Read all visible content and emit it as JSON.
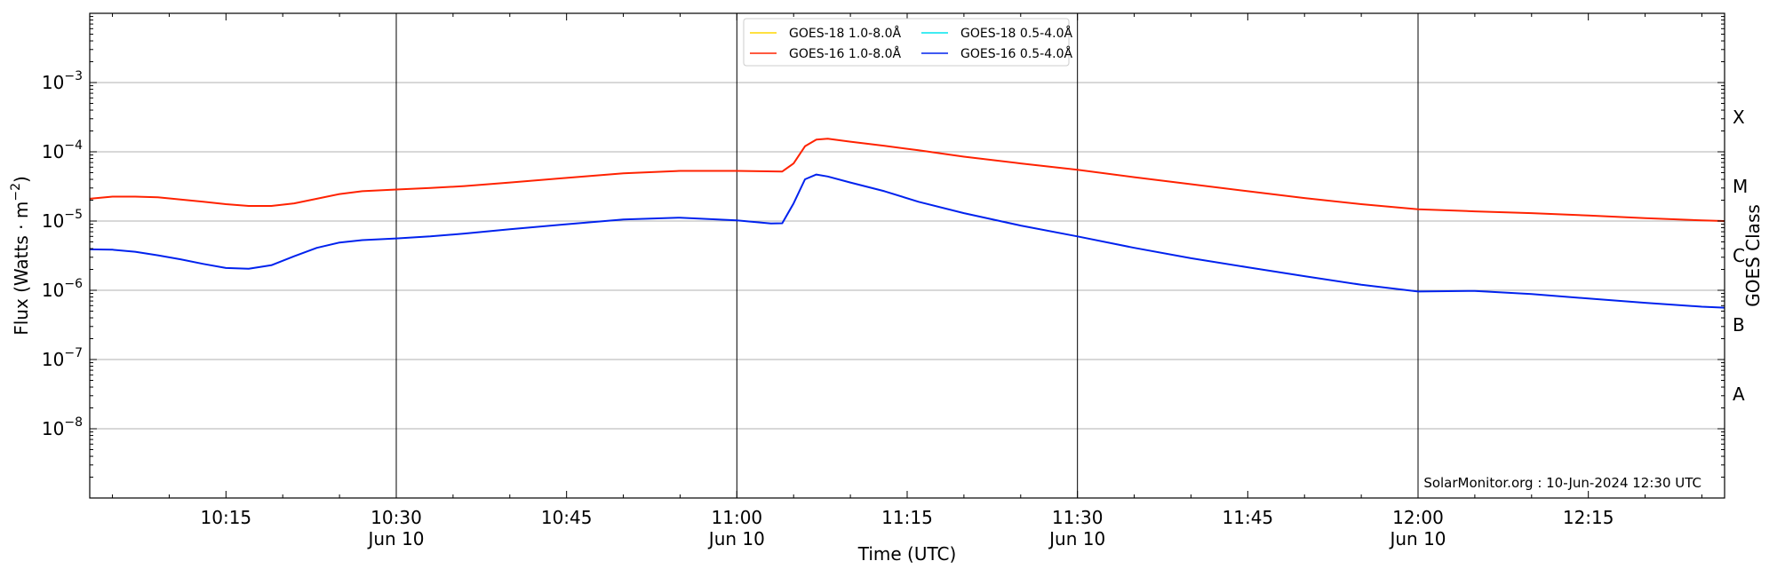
{
  "chart_data": {
    "type": "line",
    "ylabel": "Flux (Watts · m",
    "ylabel_sup": "−2",
    "ylabel_close": ")",
    "xlabel": "Time (UTC)",
    "right_ylabel": "GOES Class",
    "y_scale": "log",
    "ylim": [
      1e-09,
      0.01
    ],
    "xlim": [
      "2024-06-10T10:03",
      "2024-06-10T12:27"
    ],
    "grid": "horizontal",
    "legend_position": "top-center",
    "y_ticks": [
      {
        "value": 1e-08,
        "base": "10",
        "exp": "−8"
      },
      {
        "value": 1e-07,
        "base": "10",
        "exp": "−7"
      },
      {
        "value": 1e-06,
        "base": "10",
        "exp": "−6"
      },
      {
        "value": 1e-05,
        "base": "10",
        "exp": "−5"
      },
      {
        "value": 0.0001,
        "base": "10",
        "exp": "−4"
      },
      {
        "value": 0.001,
        "base": "10",
        "exp": "−3"
      }
    ],
    "x_ticks": [
      {
        "time": "2024-06-10T10:15",
        "label": "10:15",
        "sublabel": ""
      },
      {
        "time": "2024-06-10T10:30",
        "label": "10:30",
        "sublabel": "Jun 10"
      },
      {
        "time": "2024-06-10T10:45",
        "label": "10:45",
        "sublabel": ""
      },
      {
        "time": "2024-06-10T11:00",
        "label": "11:00",
        "sublabel": "Jun 10"
      },
      {
        "time": "2024-06-10T11:15",
        "label": "11:15",
        "sublabel": ""
      },
      {
        "time": "2024-06-10T11:30",
        "label": "11:30",
        "sublabel": "Jun 10"
      },
      {
        "time": "2024-06-10T11:45",
        "label": "11:45",
        "sublabel": ""
      },
      {
        "time": "2024-06-10T12:00",
        "label": "12:00",
        "sublabel": "Jun 10"
      },
      {
        "time": "2024-06-10T12:15",
        "label": "12:15",
        "sublabel": ""
      }
    ],
    "vertical_lines": [
      "2024-06-10T10:30",
      "2024-06-10T11:00",
      "2024-06-10T11:30",
      "2024-06-10T12:00"
    ],
    "goes_classes": [
      {
        "label": "A",
        "value": 3.16e-08
      },
      {
        "label": "B",
        "value": 3.16e-07
      },
      {
        "label": "C",
        "value": 3.16e-06
      },
      {
        "label": "M",
        "value": 3.16e-05
      },
      {
        "label": "X",
        "value": 0.000316
      }
    ],
    "legend": [
      {
        "name": "GOES-18 1.0-8.0Å",
        "color": "#ffd700"
      },
      {
        "name": "GOES-18 0.5-4.0Å",
        "color": "#00e5ee"
      },
      {
        "name": "GOES-16 1.0-8.0Å",
        "color": "#ff2200"
      },
      {
        "name": "GOES-16 0.5-4.0Å",
        "color": "#0022ee"
      }
    ],
    "series": [
      {
        "name": "GOES-16 1.0-8.0Å",
        "color": "#ff2200",
        "points": [
          [
            "2024-06-10T10:03",
            2.1e-05
          ],
          [
            "2024-06-10T10:05",
            2.25e-05
          ],
          [
            "2024-06-10T10:07",
            2.25e-05
          ],
          [
            "2024-06-10T10:09",
            2.2e-05
          ],
          [
            "2024-06-10T10:11",
            2.05e-05
          ],
          [
            "2024-06-10T10:13",
            1.9e-05
          ],
          [
            "2024-06-10T10:15",
            1.75e-05
          ],
          [
            "2024-06-10T10:17",
            1.65e-05
          ],
          [
            "2024-06-10T10:19",
            1.65e-05
          ],
          [
            "2024-06-10T10:21",
            1.8e-05
          ],
          [
            "2024-06-10T10:23",
            2.1e-05
          ],
          [
            "2024-06-10T10:25",
            2.45e-05
          ],
          [
            "2024-06-10T10:27",
            2.7e-05
          ],
          [
            "2024-06-10T10:30",
            2.85e-05
          ],
          [
            "2024-06-10T10:33",
            3e-05
          ],
          [
            "2024-06-10T10:36",
            3.2e-05
          ],
          [
            "2024-06-10T10:40",
            3.6e-05
          ],
          [
            "2024-06-10T10:45",
            4.2e-05
          ],
          [
            "2024-06-10T10:50",
            4.9e-05
          ],
          [
            "2024-06-10T10:55",
            5.3e-05
          ],
          [
            "2024-06-10T11:00",
            5.3e-05
          ],
          [
            "2024-06-10T11:04",
            5.2e-05
          ],
          [
            "2024-06-10T11:05",
            6.8e-05
          ],
          [
            "2024-06-10T11:06",
            0.00012
          ],
          [
            "2024-06-10T11:07",
            0.00015
          ],
          [
            "2024-06-10T11:08",
            0.000155
          ],
          [
            "2024-06-10T11:10",
            0.00014
          ],
          [
            "2024-06-10T11:13",
            0.000122
          ],
          [
            "2024-06-10T11:16",
            0.000105
          ],
          [
            "2024-06-10T11:20",
            8.5e-05
          ],
          [
            "2024-06-10T11:25",
            6.8e-05
          ],
          [
            "2024-06-10T11:30",
            5.5e-05
          ],
          [
            "2024-06-10T11:35",
            4.3e-05
          ],
          [
            "2024-06-10T11:40",
            3.4e-05
          ],
          [
            "2024-06-10T11:45",
            2.7e-05
          ],
          [
            "2024-06-10T11:50",
            2.15e-05
          ],
          [
            "2024-06-10T11:55",
            1.75e-05
          ],
          [
            "2024-06-10T12:00",
            1.48e-05
          ],
          [
            "2024-06-10T12:05",
            1.38e-05
          ],
          [
            "2024-06-10T12:10",
            1.3e-05
          ],
          [
            "2024-06-10T12:15",
            1.2e-05
          ],
          [
            "2024-06-10T12:20",
            1.1e-05
          ],
          [
            "2024-06-10T12:25",
            1.02e-05
          ],
          [
            "2024-06-10T12:27",
            1e-05
          ]
        ]
      },
      {
        "name": "GOES-16 0.5-4.0Å",
        "color": "#0022ee",
        "points": [
          [
            "2024-06-10T10:03",
            3.9e-06
          ],
          [
            "2024-06-10T10:05",
            3.85e-06
          ],
          [
            "2024-06-10T10:07",
            3.6e-06
          ],
          [
            "2024-06-10T10:09",
            3.2e-06
          ],
          [
            "2024-06-10T10:11",
            2.8e-06
          ],
          [
            "2024-06-10T10:13",
            2.4e-06
          ],
          [
            "2024-06-10T10:15",
            2.1e-06
          ],
          [
            "2024-06-10T10:17",
            2.05e-06
          ],
          [
            "2024-06-10T10:19",
            2.3e-06
          ],
          [
            "2024-06-10T10:21",
            3.1e-06
          ],
          [
            "2024-06-10T10:23",
            4.1e-06
          ],
          [
            "2024-06-10T10:25",
            4.9e-06
          ],
          [
            "2024-06-10T10:27",
            5.3e-06
          ],
          [
            "2024-06-10T10:30",
            5.6e-06
          ],
          [
            "2024-06-10T10:33",
            6e-06
          ],
          [
            "2024-06-10T10:36",
            6.6e-06
          ],
          [
            "2024-06-10T10:40",
            7.6e-06
          ],
          [
            "2024-06-10T10:45",
            9e-06
          ],
          [
            "2024-06-10T10:50",
            1.05e-05
          ],
          [
            "2024-06-10T10:55",
            1.12e-05
          ],
          [
            "2024-06-10T11:00",
            1.02e-05
          ],
          [
            "2024-06-10T11:03",
            9.2e-06
          ],
          [
            "2024-06-10T11:04",
            9.3e-06
          ],
          [
            "2024-06-10T11:05",
            1.8e-05
          ],
          [
            "2024-06-10T11:06",
            4e-05
          ],
          [
            "2024-06-10T11:07",
            4.7e-05
          ],
          [
            "2024-06-10T11:08",
            4.4e-05
          ],
          [
            "2024-06-10T11:10",
            3.6e-05
          ],
          [
            "2024-06-10T11:13",
            2.7e-05
          ],
          [
            "2024-06-10T11:16",
            1.9e-05
          ],
          [
            "2024-06-10T11:20",
            1.3e-05
          ],
          [
            "2024-06-10T11:25",
            8.6e-06
          ],
          [
            "2024-06-10T11:30",
            6e-06
          ],
          [
            "2024-06-10T11:35",
            4.1e-06
          ],
          [
            "2024-06-10T11:40",
            2.9e-06
          ],
          [
            "2024-06-10T11:45",
            2.15e-06
          ],
          [
            "2024-06-10T11:50",
            1.6e-06
          ],
          [
            "2024-06-10T11:55",
            1.2e-06
          ],
          [
            "2024-06-10T12:00",
            9.6e-07
          ],
          [
            "2024-06-10T12:05",
            9.8e-07
          ],
          [
            "2024-06-10T12:10",
            8.8e-07
          ],
          [
            "2024-06-10T12:15",
            7.6e-07
          ],
          [
            "2024-06-10T12:20",
            6.6e-07
          ],
          [
            "2024-06-10T12:25",
            5.8e-07
          ],
          [
            "2024-06-10T12:27",
            5.6e-07
          ]
        ]
      }
    ],
    "credit": "SolarMonitor.org : 10-Jun-2024 12:30 UTC"
  }
}
